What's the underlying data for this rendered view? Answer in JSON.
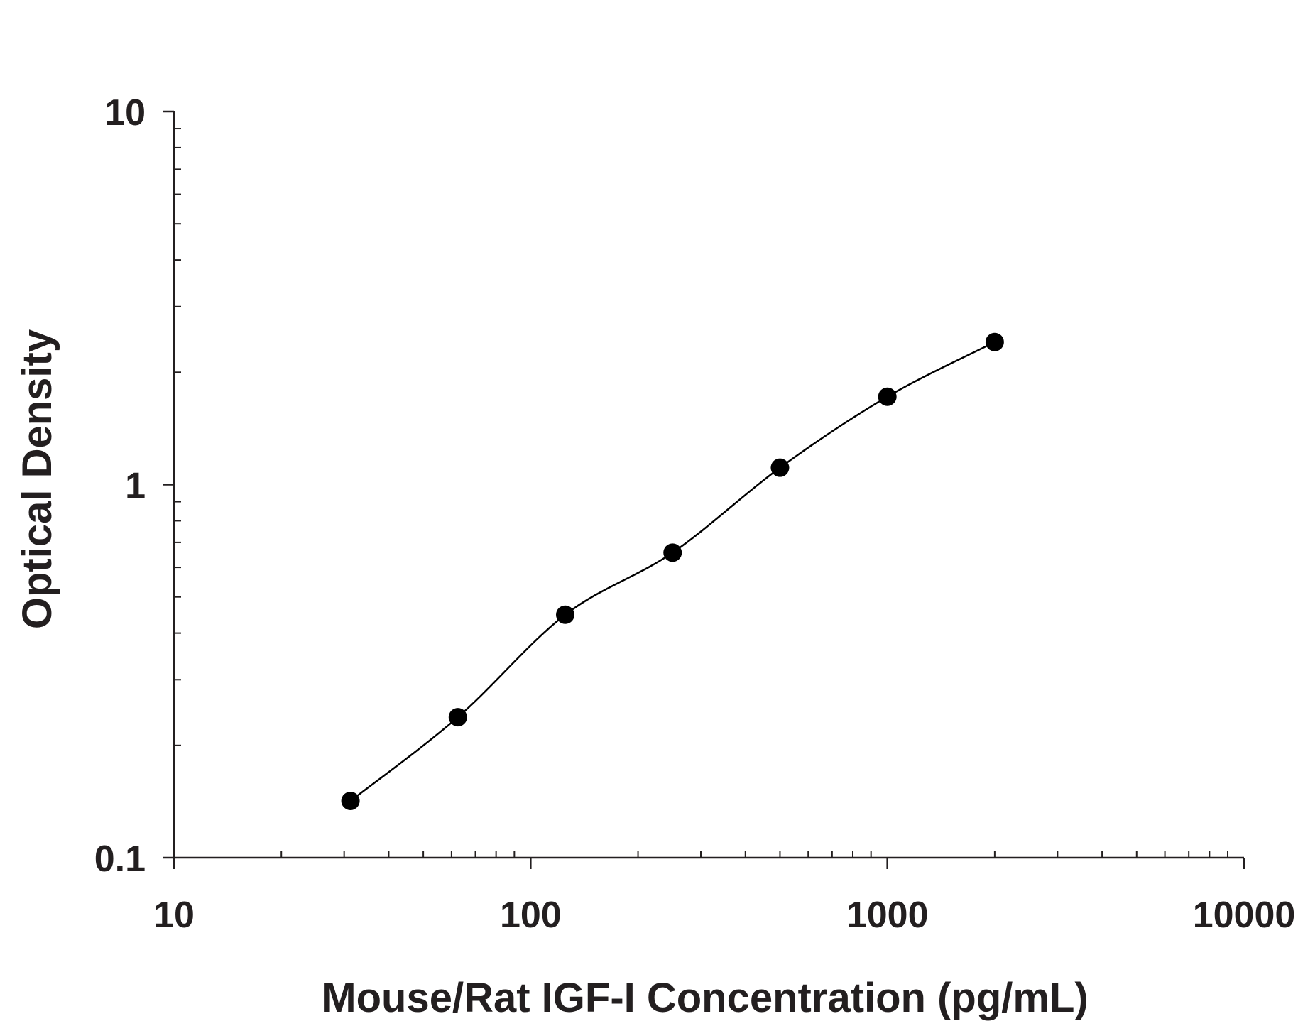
{
  "chart_data": {
    "type": "scatter",
    "title": "",
    "xlabel": "Mouse/Rat IGF-I Concentration (pg/mL)",
    "ylabel": "Optical Density",
    "xscale": "log",
    "yscale": "log",
    "xlim": [
      10,
      10000
    ],
    "ylim": [
      0.1,
      10
    ],
    "x_ticks": [
      {
        "value": 10,
        "label": "10"
      },
      {
        "value": 100,
        "label": "100"
      },
      {
        "value": 1000,
        "label": "1000"
      },
      {
        "value": 10000,
        "label": "10000"
      }
    ],
    "y_ticks": [
      {
        "value": 0.1,
        "label": "0.1"
      },
      {
        "value": 1,
        "label": "1"
      },
      {
        "value": 10,
        "label": "10"
      }
    ],
    "grid": false,
    "legend": "none",
    "series": [
      {
        "x": [
          31.25,
          62.5,
          125,
          250,
          500,
          1000,
          2000
        ],
        "y": [
          0.142,
          0.238,
          0.448,
          0.657,
          1.11,
          1.72,
          2.41
        ],
        "marker_color": "#000000",
        "fit_curve": true,
        "line_color": "#000000"
      }
    ]
  }
}
